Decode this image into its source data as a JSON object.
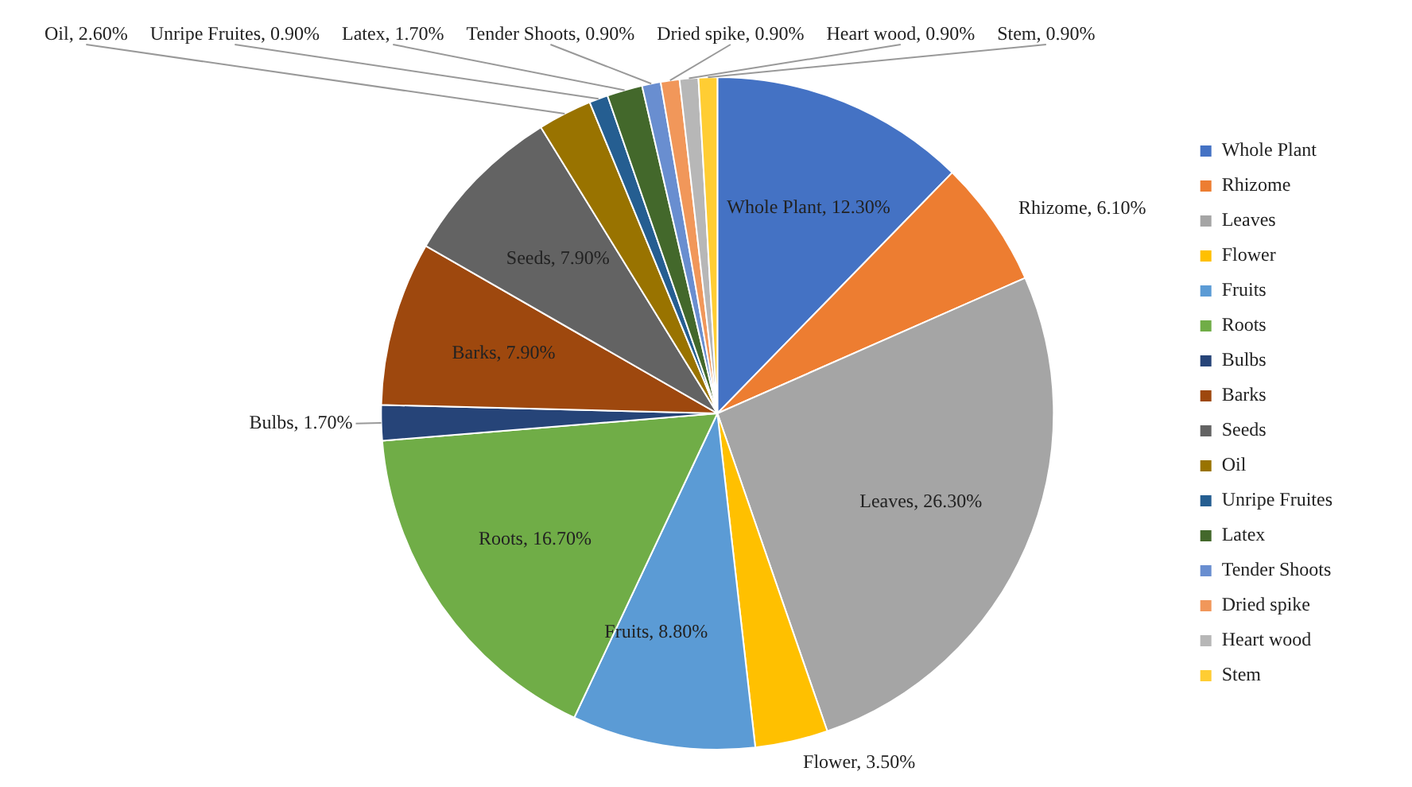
{
  "chart_data": {
    "type": "pie",
    "categories": [
      "Whole Plant",
      "Rhizome",
      "Leaves",
      "Flower",
      "Fruits",
      "Roots",
      "Bulbs",
      "Barks",
      "Seeds",
      "Oil",
      "Unripe Fruites",
      "Latex",
      "Tender Shoots",
      "Dried spike",
      "Heart wood",
      "Stem"
    ],
    "values": [
      12.3,
      6.1,
      26.3,
      3.5,
      8.8,
      16.7,
      1.7,
      7.9,
      7.9,
      2.6,
      0.9,
      1.7,
      0.9,
      0.9,
      0.9,
      0.9
    ],
    "value_labels": [
      "Whole Plant, 12.30%",
      "Rhizome, 6.10%",
      "Leaves, 26.30%",
      "Flower, 3.50%",
      "Fruits, 8.80%",
      "Roots, 16.70%",
      "Bulbs, 1.70%",
      "Barks, 7.90%",
      "Seeds, 7.90%",
      "Oil, 2.60%",
      "Unripe Fruites, 0.90%",
      "Latex, 1.70%",
      "Tender Shoots, 0.90%",
      "Dried spike, 0.90%",
      "Heart wood, 0.90%",
      "Stem, 0.90%"
    ],
    "colors": [
      "#4472c4",
      "#ed7d31",
      "#a5a5a5",
      "#ffc000",
      "#5b9bd5",
      "#70ad47",
      "#264478",
      "#9e480e",
      "#636363",
      "#997300",
      "#255e91",
      "#43682b",
      "#698ed0",
      "#f1975a",
      "#b7b7b7",
      "#ffcd33"
    ],
    "legend": "right"
  }
}
